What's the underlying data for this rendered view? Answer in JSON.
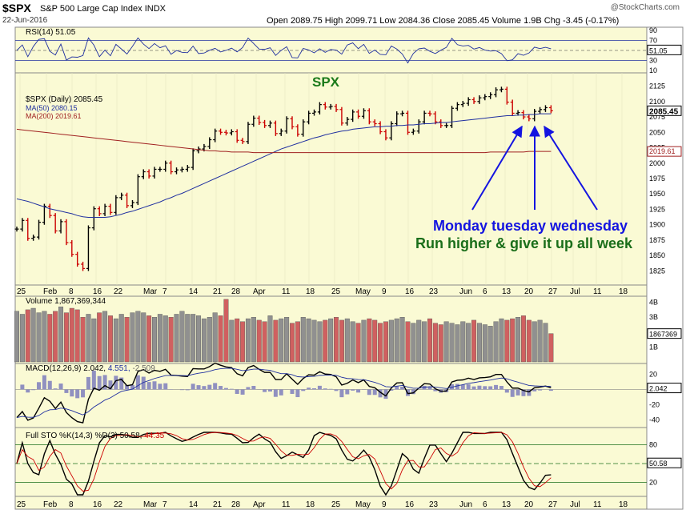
{
  "header": {
    "symbol": "$SPX",
    "description": "S&P 500 Large Cap Index",
    "exchange": "INDX",
    "date": "22-Jun-2016",
    "source": "@StockCharts.com",
    "ohlc": "Open 2089.75  High 2099.71  Low 2084.36  Close 2085.45  Volume 1.9B  Chg -3.45 (-0.17%)"
  },
  "colors": {
    "panel_bg": "#fafad4",
    "up": "#000000",
    "down": "#cc0000",
    "ma50": "#1f2fa0",
    "ma200": "#a02020",
    "annotation_blue": "#1414e0",
    "annotation_green": "#1a6e1a",
    "spx_title": "#1a7a1a"
  },
  "annotations": {
    "spx_title": "SPX",
    "line1": "Monday tuesday wednesday",
    "line2": "Run higher & give it up all week"
  },
  "x_axis_labels": [
    "25",
    "Feb",
    "8",
    "16",
    "22",
    "Mar",
    "7",
    "14",
    "21",
    "28",
    "Apr",
    "11",
    "18",
    "25",
    "May",
    "9",
    "16",
    "23",
    "Jun",
    "6",
    "13",
    "20",
    "27",
    "Jul",
    "11",
    "18"
  ],
  "chart_data": [
    {
      "panel": "RSI",
      "type": "line",
      "legend": "RSI(14) 51.05",
      "y_ticks": [
        90,
        70,
        50,
        30,
        10
      ],
      "current_value": "51.05",
      "ylim": [
        10,
        90
      ]
    },
    {
      "panel": "price",
      "type": "ohlc",
      "legend_price": "$SPX (Daily) 2085.45",
      "legend_ma50": "MA(50) 2080.15",
      "legend_ma200": "MA(200) 2019.61",
      "current_price_label": "2085.45",
      "current_ma200_label": "2019.61",
      "y_ticks": [
        2125,
        2100,
        2075,
        2050,
        2025,
        2000,
        1975,
        1950,
        1925,
        1900,
        1875,
        1850,
        1825
      ],
      "ylim": [
        1810,
        2140
      ],
      "close": [
        1893,
        1907,
        1878,
        1880,
        1904,
        1930,
        1915,
        1890,
        1905,
        1871,
        1852,
        1836,
        1829,
        1895,
        1926,
        1918,
        1930,
        1920,
        1944,
        1948,
        1931,
        1936,
        1978,
        1986,
        1979,
        1990,
        1990,
        2000,
        1986,
        1989,
        1990,
        1993,
        2020,
        2023,
        2027,
        2038,
        2052,
        2050,
        2049,
        2051,
        2037,
        2035,
        2063,
        2073,
        2066,
        2061,
        2065,
        2048,
        2052,
        2072,
        2059,
        2047,
        2067,
        2081,
        2083,
        2095,
        2091,
        2092,
        2087,
        2065,
        2071,
        2083,
        2076,
        2085,
        2067,
        2064,
        2051,
        2041,
        2064,
        2080,
        2081,
        2050,
        2052,
        2067,
        2081,
        2080,
        2067,
        2061,
        2061,
        2089,
        2095,
        2097,
        2103,
        2100,
        2106,
        2108,
        2111,
        2119,
        2120,
        2099,
        2081,
        2082,
        2075,
        2072,
        2084,
        2087,
        2090,
        2085
      ],
      "ma50": [
        1942,
        1940,
        1938,
        1935,
        1932,
        1929,
        1926,
        1924,
        1922,
        1920,
        1918,
        1915,
        1913,
        1912,
        1912,
        1912,
        1912,
        1913,
        1915,
        1917,
        1920,
        1922,
        1925,
        1928,
        1931,
        1934,
        1937,
        1941,
        1944,
        1948,
        1951,
        1955,
        1959,
        1963,
        1967,
        1971,
        1975,
        1979,
        1983,
        1987,
        1991,
        1995,
        1999,
        2003,
        2007,
        2011,
        2015,
        2019,
        2023,
        2026,
        2029,
        2032,
        2035,
        2038,
        2041,
        2043,
        2046,
        2048,
        2050,
        2052,
        2053,
        2055,
        2056,
        2057,
        2058,
        2059,
        2059,
        2060,
        2060,
        2061,
        2061,
        2062,
        2062,
        2063,
        2064,
        2064,
        2065,
        2066,
        2066,
        2067,
        2068,
        2069,
        2070,
        2071,
        2072,
        2073,
        2074,
        2075,
        2076,
        2077,
        2077,
        2078,
        2078,
        2079,
        2079,
        2080,
        2080,
        2080
      ],
      "ma200": [
        2055,
        2054,
        2053,
        2052,
        2051,
        2050,
        2049,
        2048,
        2047,
        2046,
        2045,
        2044,
        2043,
        2042,
        2041,
        2040,
        2039,
        2038,
        2037,
        2036,
        2035,
        2034,
        2033,
        2032,
        2031,
        2030,
        2029,
        2028,
        2027,
        2026,
        2025,
        2024,
        2023,
        2022,
        2021,
        2020,
        2020,
        2019,
        2019,
        2018,
        2018,
        2018,
        2018,
        2017,
        2017,
        2017,
        2017,
        2017,
        2017,
        2017,
        2017,
        2017,
        2017,
        2017,
        2017,
        2017,
        2017,
        2017,
        2017,
        2017,
        2017,
        2017,
        2017,
        2017,
        2017,
        2017,
        2017,
        2017,
        2017,
        2017,
        2017,
        2017,
        2017,
        2017,
        2017,
        2017,
        2017,
        2017,
        2017,
        2017,
        2017,
        2017,
        2017,
        2017,
        2017,
        2017,
        2018,
        2018,
        2018,
        2018,
        2018,
        2018,
        2018,
        2019,
        2019,
        2019,
        2019,
        2019
      ]
    },
    {
      "panel": "volume",
      "type": "bar",
      "legend": "Volume 1,867,369,344",
      "y_ticks": [
        "4B",
        "3B",
        "2B",
        "1B"
      ],
      "current_label": "1867369",
      "ylim_billion": [
        0,
        4.3
      ],
      "values_billion": [
        3.4,
        3.2,
        3.5,
        3.6,
        3.3,
        3.4,
        3.2,
        3.4,
        3.7,
        3.3,
        3.6,
        3.5,
        3.0,
        3.2,
        2.9,
        3.3,
        3.4,
        3.1,
        2.9,
        3.2,
        3.0,
        3.3,
        3.4,
        3.3,
        3.1,
        3.0,
        3.2,
        3.1,
        3.0,
        3.2,
        3.4,
        3.2,
        3.2,
        3.1,
        2.9,
        3.0,
        3.3,
        3.1,
        4.2,
        2.8,
        2.9,
        2.7,
        2.9,
        3.0,
        2.8,
        2.7,
        3.1,
        2.8,
        2.9,
        3.0,
        2.6,
        2.7,
        3.0,
        2.9,
        2.8,
        2.7,
        2.8,
        2.9,
        3.0,
        2.8,
        2.9,
        2.7,
        2.6,
        2.8,
        2.9,
        2.8,
        2.6,
        2.7,
        2.8,
        2.9,
        3.0,
        2.7,
        2.6,
        2.8,
        2.7,
        2.9,
        2.6,
        2.5,
        2.7,
        2.6,
        2.5,
        2.7,
        2.6,
        2.8,
        2.6,
        2.5,
        2.4,
        2.7,
        2.9,
        2.8,
        2.9,
        3.0,
        3.1,
        2.8,
        2.7,
        2.8,
        2.6,
        1.9
      ]
    },
    {
      "panel": "MACD",
      "type": "line",
      "legend_main": "MACD(12,26,9) 2.042,",
      "legend_signal": "4.551,",
      "legend_hist": "-2.509",
      "y_ticks": [
        20,
        0,
        -20,
        -40
      ],
      "current_label": "2.042",
      "ylim": [
        -48,
        30
      ]
    },
    {
      "panel": "stochastic",
      "type": "line",
      "legend_main": "Full STO %K(14,3) %D(3) 50.58,",
      "legend_d": "44.35",
      "y_ticks": [
        80,
        50,
        20
      ],
      "current_label": "50.58",
      "ylim": [
        0,
        100
      ]
    }
  ]
}
